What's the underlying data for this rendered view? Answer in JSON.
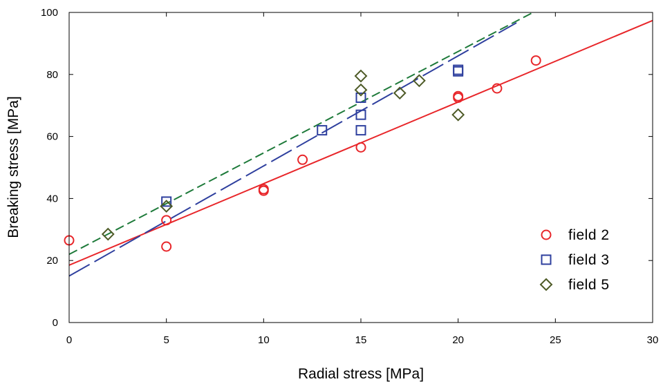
{
  "chart_data": {
    "type": "scatter",
    "xlabel": "Radial stress [MPa]",
    "ylabel": "Breaking stress [MPa]",
    "xlim": [
      0,
      30
    ],
    "ylim": [
      0,
      100
    ],
    "x_ticks": [
      0,
      5,
      10,
      15,
      20,
      25,
      30
    ],
    "y_ticks": [
      0,
      20,
      40,
      60,
      80,
      100
    ],
    "grid": false,
    "legend_position": "bottom-right",
    "series": [
      {
        "name": "field 2",
        "marker": "circle",
        "color": "#e8262a",
        "points": [
          [
            0,
            26.5
          ],
          [
            5,
            33
          ],
          [
            5,
            24.5
          ],
          [
            10,
            43
          ],
          [
            10,
            42.5
          ],
          [
            12,
            52.5
          ],
          [
            15,
            56.5
          ],
          [
            20,
            73
          ],
          [
            20,
            72.5
          ],
          [
            22,
            75.5
          ],
          [
            24,
            84.5
          ]
        ]
      },
      {
        "name": "field 3",
        "marker": "square",
        "color": "#2e3f9e",
        "points": [
          [
            5,
            39
          ],
          [
            13,
            62
          ],
          [
            15,
            72.5
          ],
          [
            15,
            67
          ],
          [
            15,
            62
          ],
          [
            20,
            81
          ],
          [
            20,
            81.5
          ]
        ]
      },
      {
        "name": "field 5",
        "marker": "diamond",
        "color": "#4d5a26",
        "points": [
          [
            2,
            28.5
          ],
          [
            5,
            37.5
          ],
          [
            15,
            79.5
          ],
          [
            15,
            75
          ],
          [
            17,
            74
          ],
          [
            18,
            78
          ],
          [
            20,
            67
          ]
        ]
      }
    ],
    "fit_lines": [
      {
        "series": "field 2",
        "style": "solid",
        "color": "#e8262a",
        "intercept": 18.5,
        "slope": 2.63,
        "x_range": [
          0,
          30
        ]
      },
      {
        "series": "field 3",
        "style": "long-dash",
        "color": "#2e3f9e",
        "intercept": 15,
        "slope": 3.55,
        "x_range": [
          0,
          23
        ]
      },
      {
        "series": "field 5",
        "style": "dash",
        "color": "#1e7a3a",
        "intercept": 22,
        "slope": 3.27,
        "x_range": [
          0,
          24
        ]
      }
    ]
  }
}
